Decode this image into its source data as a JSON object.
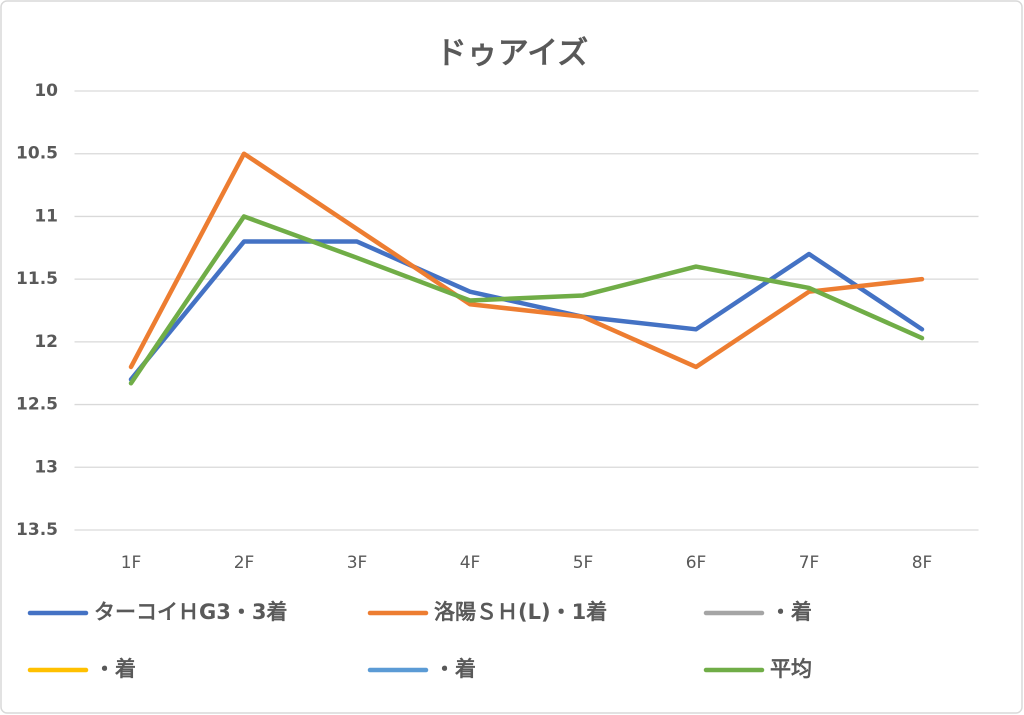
{
  "chart_data": {
    "type": "line",
    "title": "ドゥアイズ",
    "categories": [
      "1F",
      "2F",
      "3F",
      "4F",
      "5F",
      "6F",
      "7F",
      "8F"
    ],
    "series": [
      {
        "name": "ターコイＨG3・3着",
        "color": "#4472c4",
        "values": [
          12.3,
          11.2,
          11.2,
          11.6,
          11.8,
          11.9,
          11.3,
          11.9
        ]
      },
      {
        "name": "洛陽ＳＨ(L)・1着",
        "color": "#ed7d31",
        "values": [
          12.2,
          10.5,
          11.1,
          11.7,
          11.8,
          12.2,
          11.6,
          11.5
        ]
      },
      {
        "name": "・着",
        "color": "#a5a5a5",
        "values": [
          null,
          null,
          null,
          null,
          null,
          null,
          null,
          null
        ]
      },
      {
        "name": "・着",
        "color": "#ffc000",
        "values": [
          null,
          null,
          null,
          null,
          null,
          null,
          null,
          null
        ]
      },
      {
        "name": "・着",
        "color": "#5b9bd5",
        "values": [
          null,
          null,
          null,
          null,
          null,
          null,
          null,
          null
        ]
      },
      {
        "name": "平均",
        "color": "#70ad47",
        "values": [
          12.33,
          11.0,
          11.33,
          11.67,
          11.63,
          11.4,
          11.57,
          11.97
        ]
      }
    ],
    "ylim": [
      10,
      13.5
    ],
    "yticks": [
      10,
      10.5,
      11,
      11.5,
      12,
      12.5,
      13,
      13.5
    ],
    "y_inverted": true,
    "grid": true,
    "legend": "bottom"
  }
}
